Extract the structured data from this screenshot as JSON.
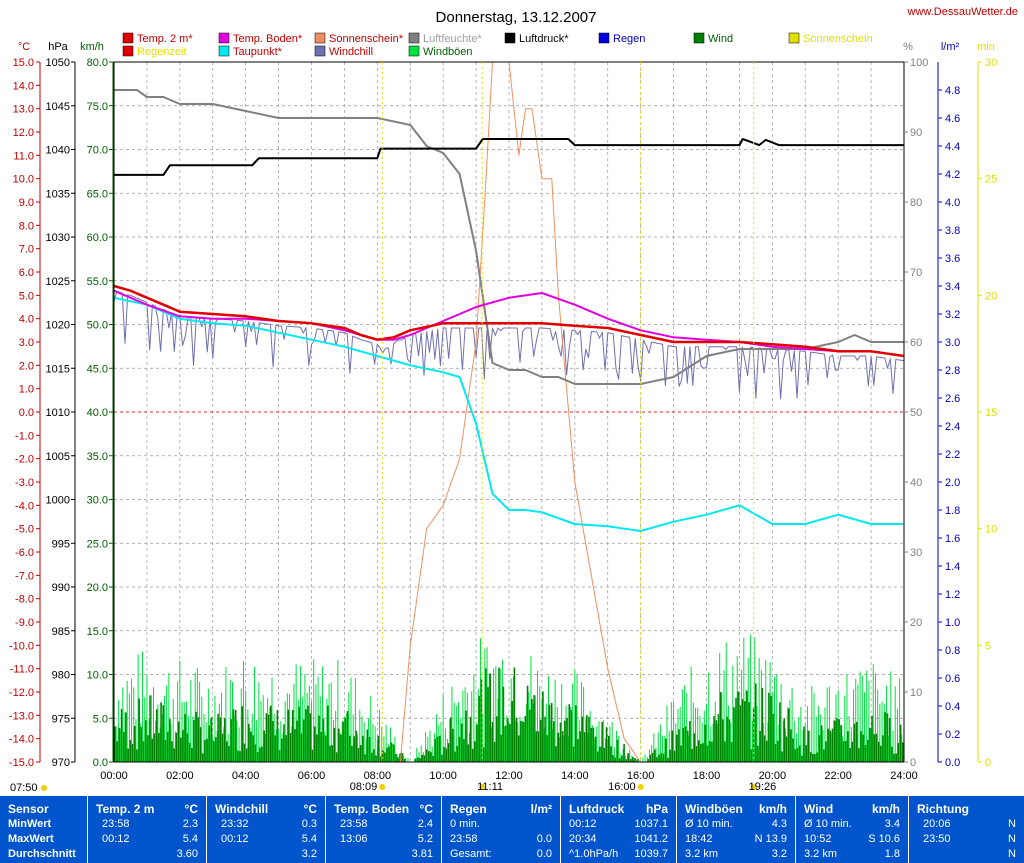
{
  "header": {
    "title": "Donnerstag, 13.12.2007",
    "site": "www.DessauWetter.de"
  },
  "axes": {
    "left_units": [
      "°C",
      "hPa",
      "km/h"
    ],
    "right_units": [
      "%",
      "l/m²",
      "min"
    ],
    "temp_ticks": [
      "15.0",
      "14.0",
      "13.0",
      "12.0",
      "11.0",
      "10.0",
      "9.0",
      "8.0",
      "7.0",
      "6.0",
      "5.0",
      "4.0",
      "3.0",
      "2.0",
      "1.0",
      "0.0",
      "-1.0",
      "-2.0",
      "-3.0",
      "-4.0",
      "-5.0",
      "-6.0",
      "-7.0",
      "-8.0",
      "-9.0",
      "-10.0",
      "-11.0",
      "-12.0",
      "-13.0",
      "-14.0",
      "-15.0"
    ],
    "pressure_ticks": [
      "1050",
      "1045",
      "1040",
      "1035",
      "1030",
      "1025",
      "1020",
      "1015",
      "1010",
      "1005",
      "1000",
      "995",
      "990",
      "985",
      "980",
      "975",
      "970"
    ],
    "wind_ticks": [
      "80.0",
      "75.0",
      "70.0",
      "65.0",
      "60.0",
      "55.0",
      "50.0",
      "45.0",
      "40.0",
      "35.0",
      "30.0",
      "25.0",
      "20.0",
      "15.0",
      "10.0",
      "5.0",
      "0.0"
    ],
    "humidity_ticks": [
      "100",
      "90",
      "80",
      "70",
      "60",
      "50",
      "40",
      "30",
      "20",
      "10",
      "0"
    ],
    "rain_ticks": [
      "4.8",
      "4.6",
      "4.4",
      "4.2",
      "4.0",
      "3.8",
      "3.6",
      "3.4",
      "3.2",
      "3.0",
      "2.8",
      "2.6",
      "2.4",
      "2.2",
      "2.0",
      "1.8",
      "1.6",
      "1.4",
      "1.2",
      "1.0",
      "0.8",
      "0.6",
      "0.4",
      "0.2",
      "0.0"
    ],
    "sun_ticks": [
      "30",
      "25",
      "20",
      "15",
      "10",
      "5",
      "0"
    ],
    "x_ticks": [
      "00:00",
      "02:00",
      "04:00",
      "06:00",
      "08:00",
      "10:00",
      "12:00",
      "14:00",
      "16:00",
      "18:00",
      "20:00",
      "22:00",
      "24:00"
    ]
  },
  "sun_markers": {
    "sunrise": "08:09",
    "sunset": "16:00",
    "moonrise": "11:11",
    "moonset": "19:26",
    "dawn": "07:50"
  },
  "colors": {
    "temp": "#e00000",
    "ground": "#e000e0",
    "sunshine": "#f09060",
    "humidity": "#808080",
    "pressure": "#000000",
    "rain": "#0000e0",
    "wind": "#008000",
    "gusts": "#00e040",
    "dewpoint": "#00e8f0",
    "windchill": "#7070b0",
    "sunshine_min": "#e0e000",
    "stats_bg": "#0055cc"
  },
  "legend": [
    {
      "label": "Temp. 2 m*",
      "color": "#e00000",
      "text_color": "#c00000"
    },
    {
      "label": "Temp. Boden*",
      "color": "#e000e0",
      "text_color": "#c00000"
    },
    {
      "label": "Sonnenschein*",
      "color": "#f09060",
      "text_color": "#c00000"
    },
    {
      "label": "Luftfeuchte*",
      "color": "#808080",
      "text_color": "#a0a0a0"
    },
    {
      "label": "Luftdruck*",
      "color": "#000000",
      "text_color": "#000000"
    },
    {
      "label": "Regen",
      "color": "#0000e0",
      "text_color": "#0000c0"
    },
    {
      "label": "Wind",
      "color": "#008000",
      "text_color": "#006000"
    },
    {
      "label": "Sonnenschein",
      "color": "#e0e000",
      "text_color": "#e0e000"
    },
    {
      "label": "Regenzeit",
      "color": "#e00000",
      "text_color": "#e0e000"
    },
    {
      "label": "Taupunkt*",
      "color": "#00e8f0",
      "text_color": "#c00000"
    },
    {
      "label": "Windchill",
      "color": "#7070b0",
      "text_color": "#c00000"
    },
    {
      "label": "Windböen",
      "color": "#00e040",
      "text_color": "#006000"
    }
  ],
  "chart_data": {
    "type": "line",
    "title": "Donnerstag, 13.12.2007",
    "x_unit": "hours",
    "xlim": [
      0,
      24
    ],
    "temp_ylim": [
      -15,
      15
    ],
    "pressure_ylim": [
      970,
      1050
    ],
    "wind_ylim": [
      0,
      80
    ],
    "humidity_ylim": [
      0,
      100
    ],
    "rain_ylim": [
      0,
      5
    ],
    "sun_ylim": [
      0,
      30
    ],
    "grid": true,
    "series": [
      {
        "name": "Temp. 2 m",
        "axis": "temp",
        "x": [
          0,
          0.5,
          1,
          1.5,
          2,
          3,
          4,
          5,
          6,
          7,
          7.5,
          8,
          8.5,
          9,
          10,
          11,
          12,
          13,
          14,
          15,
          16,
          17,
          18,
          19,
          20,
          21,
          22,
          23,
          24
        ],
        "values": [
          5.4,
          5.2,
          4.9,
          4.6,
          4.3,
          4.2,
          4.1,
          3.9,
          3.8,
          3.6,
          3.3,
          3.1,
          3.2,
          3.5,
          3.8,
          3.8,
          3.8,
          3.8,
          3.7,
          3.6,
          3.3,
          3.0,
          3.0,
          3.0,
          2.9,
          2.8,
          2.6,
          2.6,
          2.4
        ]
      },
      {
        "name": "Temp. Boden",
        "axis": "temp",
        "x": [
          0,
          1,
          2,
          3,
          4,
          5,
          6,
          7,
          7.5,
          8,
          8.5,
          9,
          10,
          11,
          12,
          13,
          14,
          15,
          16,
          17,
          18,
          19,
          20,
          21,
          22,
          23,
          24
        ],
        "values": [
          5.2,
          4.6,
          4.1,
          4.0,
          4.0,
          3.9,
          3.8,
          3.5,
          3.3,
          3.1,
          3.1,
          3.3,
          3.9,
          4.5,
          4.9,
          5.1,
          4.6,
          4.0,
          3.5,
          3.2,
          3.1,
          3.0,
          2.8,
          2.7,
          2.6,
          2.6,
          2.4
        ]
      },
      {
        "name": "Taupunkt",
        "axis": "temp",
        "x": [
          0,
          1,
          2,
          3,
          4,
          5,
          6,
          7,
          8,
          9,
          10,
          10.5,
          11,
          11.5,
          12,
          12.5,
          13,
          14,
          15,
          16,
          17,
          18,
          19,
          20,
          21,
          22,
          23,
          24
        ],
        "values": [
          4.9,
          4.6,
          4.0,
          3.8,
          3.7,
          3.4,
          3.1,
          2.8,
          2.4,
          2.0,
          1.7,
          1.5,
          -0.5,
          -3.5,
          -4.2,
          -4.2,
          -4.3,
          -4.8,
          -4.9,
          -5.1,
          -4.7,
          -4.4,
          -4.0,
          -4.8,
          -4.8,
          -4.4,
          -4.8,
          -4.8
        ]
      },
      {
        "name": "Luftfeuchte",
        "axis": "humidity",
        "x": [
          0,
          0.7,
          1,
          1.5,
          2,
          3,
          4,
          5,
          6,
          7,
          8,
          9,
          9.5,
          10,
          10.5,
          11,
          11.5,
          12,
          12.5,
          13,
          13.5,
          14,
          15,
          16,
          17,
          18,
          19,
          20,
          21,
          22,
          22.5,
          23,
          23.5,
          24
        ],
        "values": [
          96,
          96,
          95,
          95,
          94,
          94,
          93,
          92,
          92,
          92,
          92,
          91,
          88,
          87,
          84,
          73,
          57,
          56,
          56,
          55,
          55,
          54,
          54,
          54,
          55,
          58,
          59,
          59,
          59,
          60,
          61,
          60,
          60,
          60
        ]
      },
      {
        "name": "Luftdruck",
        "axis": "pressure",
        "x": [
          0,
          1.5,
          1.7,
          4.2,
          4.4,
          8,
          8.1,
          11,
          11.2,
          13.8,
          14,
          19,
          19.1,
          19.6,
          19.8,
          20.2,
          20.4,
          24
        ],
        "values": [
          1037.1,
          1037.1,
          1038.2,
          1038.2,
          1039.0,
          1039.0,
          1040.1,
          1040.1,
          1041.2,
          1041.2,
          1040.5,
          1040.5,
          1041.2,
          1040.5,
          1041.1,
          1040.5,
          1040.5,
          1040.5
        ]
      },
      {
        "name": "Sonnenschein",
        "axis": "sun",
        "x": [
          0,
          8.7,
          9,
          9.5,
          10,
          10.5,
          11,
          11.3,
          11.5,
          12,
          12.3,
          12.5,
          12.7,
          13,
          13.3,
          13.5,
          14,
          14.5,
          15,
          15.5,
          16,
          24
        ],
        "values": [
          0,
          0,
          5,
          10,
          11,
          13,
          18,
          25,
          30,
          30,
          26,
          28,
          28,
          25,
          25,
          20,
          12,
          8,
          4,
          1,
          0,
          0
        ]
      },
      {
        "name": "Wind",
        "axis": "wind",
        "x": [
          0,
          1,
          2,
          3,
          4,
          5,
          6,
          7,
          8,
          9,
          10,
          11,
          12,
          13,
          14,
          15,
          16,
          17,
          18,
          19,
          20,
          21,
          22,
          23,
          24
        ],
        "values": [
          5,
          6,
          5,
          4,
          6,
          5,
          5,
          5,
          3,
          0,
          3,
          8,
          9,
          7,
          6,
          3,
          0,
          3,
          6,
          7,
          7,
          3,
          4,
          5,
          4
        ]
      },
      {
        "name": "Windböen",
        "axis": "wind",
        "x": [
          0,
          1,
          2,
          3,
          4,
          5,
          6,
          7,
          8,
          9,
          10,
          11,
          12,
          13,
          14,
          15,
          16,
          17,
          18,
          19,
          20,
          21,
          22,
          23,
          24
        ],
        "values": [
          10,
          11,
          10,
          9,
          11,
          10,
          10,
          10,
          6,
          0,
          7,
          12,
          13,
          10,
          9,
          5,
          0,
          7,
          11,
          13,
          11,
          7,
          9,
          10,
          8
        ]
      },
      {
        "name": "Windchill",
        "axis": "temp",
        "x": [
          0,
          2,
          4,
          6,
          8,
          10,
          12,
          14,
          16,
          18,
          20,
          22,
          24
        ],
        "values": [
          5.4,
          4.0,
          3.5,
          3.2,
          3.0,
          3.0,
          2.5,
          2.8,
          3.2,
          2.6,
          2.4,
          1.8,
          0.3
        ]
      }
    ]
  },
  "stats": {
    "columns": [
      {
        "title": "Sensor",
        "unit": "",
        "rows": [
          {
            "label": "MinWert"
          },
          {
            "label": "MaxWert"
          },
          {
            "label": "Durchschnitt"
          }
        ]
      },
      {
        "title": "Temp. 2 m",
        "unit": "°C",
        "rows": [
          {
            "time": "23:58",
            "value": "2.3"
          },
          {
            "time": "00:12",
            "value": "5.4"
          },
          {
            "time": "",
            "value": "3.60"
          }
        ]
      },
      {
        "title": "Windchill",
        "unit": "°C",
        "rows": [
          {
            "time": "23:32",
            "value": "0.3"
          },
          {
            "time": "00:12",
            "value": "5.4"
          },
          {
            "time": "",
            "value": "3.2"
          }
        ]
      },
      {
        "title": "Temp. Boden",
        "unit": "°C",
        "rows": [
          {
            "time": "23:58",
            "value": "2.4"
          },
          {
            "time": "13:06",
            "value": "5.2"
          },
          {
            "time": "",
            "value": "3.81"
          }
        ]
      },
      {
        "title": "Regen",
        "unit": "l/m²",
        "rows": [
          {
            "time": "0 min.",
            "value": ""
          },
          {
            "time": "23:58",
            "value": "0.0"
          },
          {
            "time": "Gesamt:",
            "value": "0.0"
          }
        ]
      },
      {
        "title": "Luftdruck",
        "unit": "hPa",
        "rows": [
          {
            "time": "00:12",
            "value": "1037.1"
          },
          {
            "time": "20:34",
            "value": "1041.2"
          },
          {
            "time": "^1.0hPa/h",
            "value": "1039.7"
          }
        ]
      },
      {
        "title": "Windböen",
        "unit": "km/h",
        "rows": [
          {
            "time": "Ø 10 min.",
            "value": "4.3"
          },
          {
            "time": "18:42",
            "value": "N 13.9"
          },
          {
            "time": "3.2 km",
            "value": "3.2"
          }
        ]
      },
      {
        "title": "Wind",
        "unit": "km/h",
        "rows": [
          {
            "time": "Ø 10 min.",
            "value": "3.4"
          },
          {
            "time": "10:52",
            "value": "S 10.6"
          },
          {
            "time": "3.2 km",
            "value": "1.8"
          }
        ]
      },
      {
        "title": "Richtung",
        "unit": "",
        "rows": [
          {
            "time": "20:06",
            "value": "N"
          },
          {
            "time": "23:50",
            "value": "N"
          },
          {
            "time": "",
            "value": "N"
          }
        ]
      }
    ]
  }
}
